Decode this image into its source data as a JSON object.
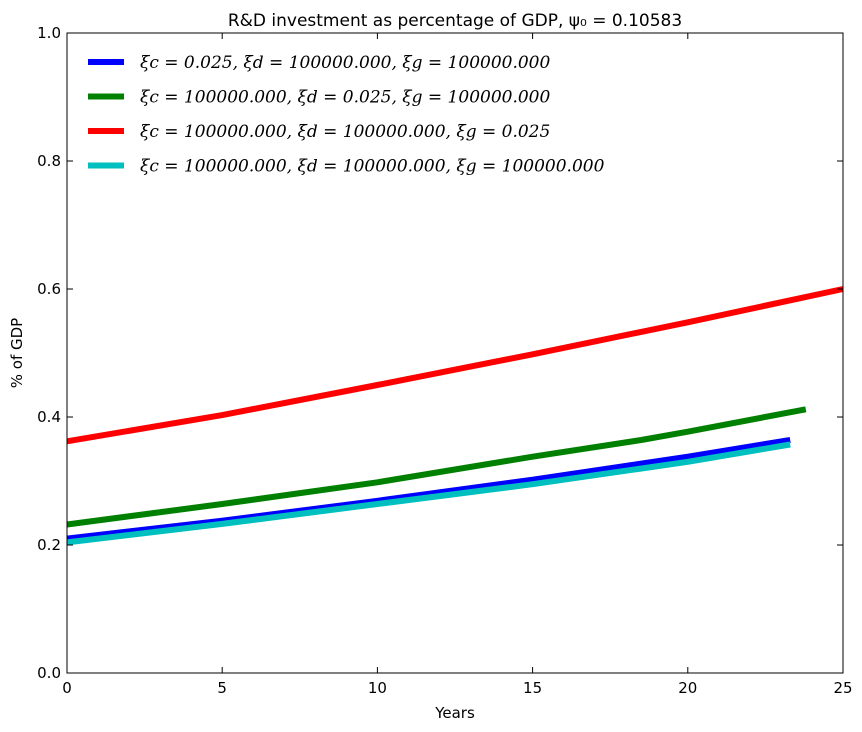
{
  "chart_data": {
    "type": "line",
    "title": "R&D investment as percentage of  GDP, ψ₀ = 0.10583",
    "xlabel": "Years",
    "ylabel": "% of GDP",
    "xlim": [
      0,
      25
    ],
    "ylim": [
      0.0,
      1.0
    ],
    "xticks": [
      0,
      5,
      10,
      15,
      20,
      25
    ],
    "yticks": [
      0.0,
      0.2,
      0.4,
      0.6,
      0.8,
      1.0
    ],
    "xtick_labels": [
      "0",
      "5",
      "10",
      "15",
      "20",
      "25"
    ],
    "ytick_labels": [
      "0.0",
      "0.2",
      "0.4",
      "0.6",
      "0.8",
      "1.0"
    ],
    "grid": false,
    "legend_position": "upper-left",
    "series": [
      {
        "name": "ξc = 0.025, ξd = 100000.000, ξg = 100000.000",
        "color": "#0000ff",
        "x": [
          0,
          5,
          10,
          15,
          20,
          23.3
        ],
        "y": [
          0.21,
          0.238,
          0.269,
          0.302,
          0.338,
          0.364
        ]
      },
      {
        "name": "ξc = 100000.000, ξd = 0.025, ξg = 100000.000",
        "color": "#008000",
        "x": [
          0,
          5,
          10,
          15,
          18.5,
          20,
          23.8
        ],
        "y": [
          0.232,
          0.264,
          0.298,
          0.338,
          0.364,
          0.377,
          0.412
        ]
      },
      {
        "name": "ξc = 100000.000, ξd = 100000.000, ξg = 0.025",
        "color": "#ff0000",
        "x": [
          0,
          5,
          10,
          15,
          20,
          25
        ],
        "y": [
          0.362,
          0.403,
          0.45,
          0.498,
          0.548,
          0.6
        ]
      },
      {
        "name": "ξc = 100000.000, ξd = 100000.000, ξg = 100000.000",
        "color": "#00bfbf",
        "x": [
          0,
          5,
          10,
          15,
          20,
          23.3
        ],
        "y": [
          0.204,
          0.233,
          0.264,
          0.295,
          0.33,
          0.357
        ]
      }
    ]
  }
}
